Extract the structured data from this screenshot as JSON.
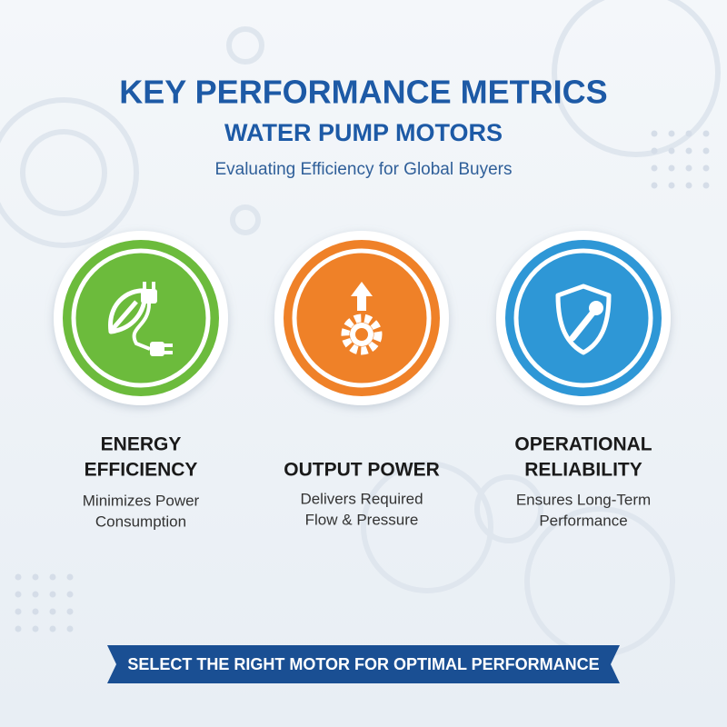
{
  "header": {
    "title": "KEY PERFORMANCE METRICS",
    "subtitle": "WATER PUMP MOTORS",
    "tagline": "Evaluating Efficiency for Global Buyers"
  },
  "cards": [
    {
      "title_lines": [
        "ENERGY",
        "EFFICIENCY"
      ],
      "description_lines": [
        "Minimizes Power",
        "Consumption"
      ]
    },
    {
      "title_lines": [
        "OUTPUT POWER"
      ],
      "description_lines": [
        "Delivers Required",
        "Flow & Pressure"
      ]
    },
    {
      "title_lines": [
        "OPERATIONAL",
        "RELIABILITY"
      ],
      "description_lines": [
        "Ensures Long-Term",
        "Performance"
      ]
    }
  ],
  "footer": {
    "banner": "SELECT THE RIGHT MOTOR FOR OPTIMAL PERFORMANCE"
  }
}
